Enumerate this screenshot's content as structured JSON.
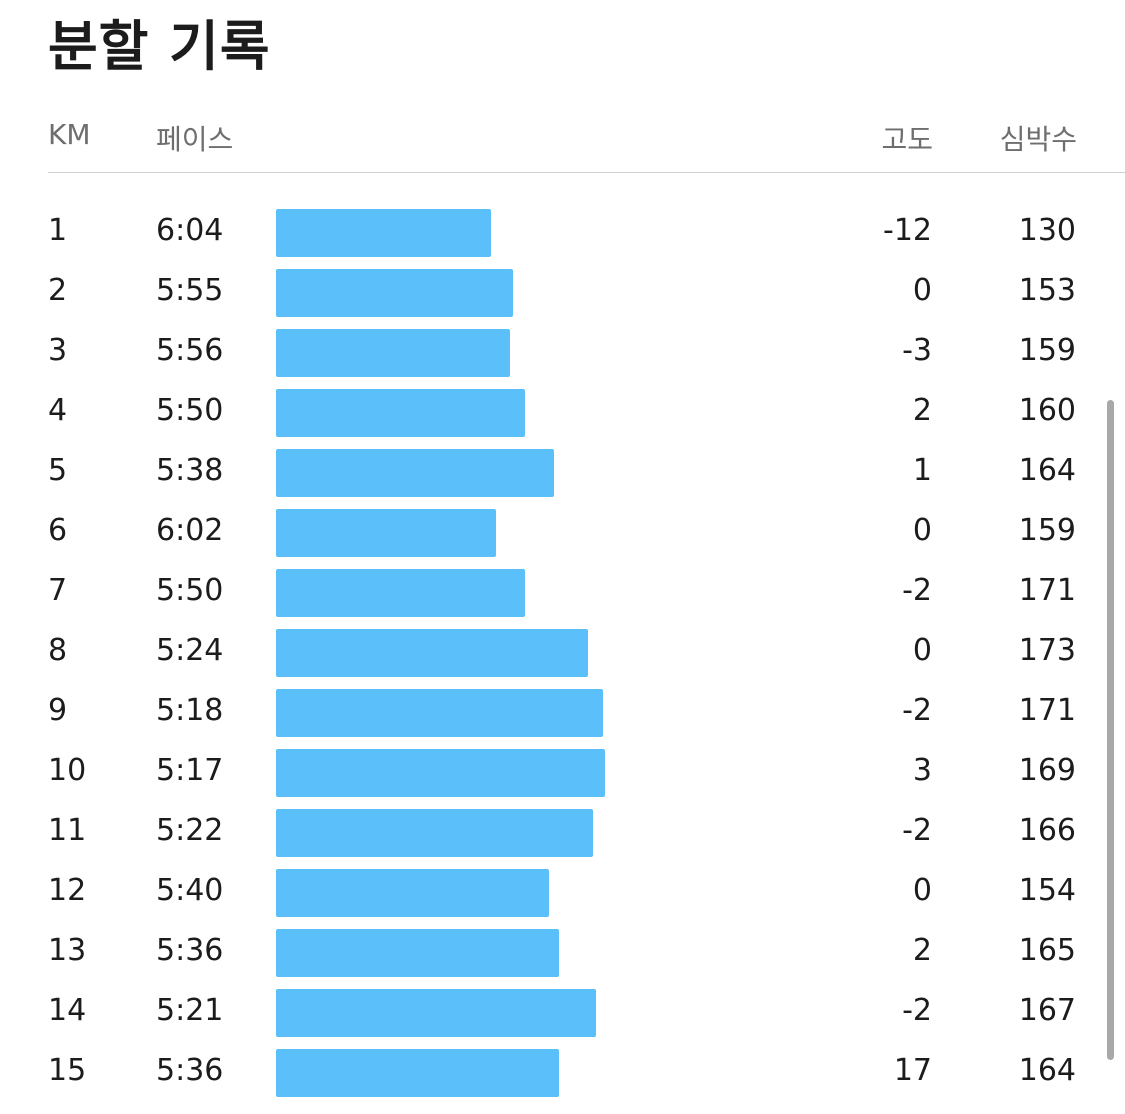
{
  "title": "분할 기록",
  "columns": {
    "km": "KM",
    "pace": "페이스",
    "elevation": "고도",
    "heart_rate": "심박수"
  },
  "accent_color": "#5bc0f9",
  "splits": [
    {
      "km": "1",
      "pace": "6:04",
      "pace_sec": 364,
      "elevation": "-12",
      "heart_rate": "130"
    },
    {
      "km": "2",
      "pace": "5:55",
      "pace_sec": 355,
      "elevation": "0",
      "heart_rate": "153"
    },
    {
      "km": "3",
      "pace": "5:56",
      "pace_sec": 356,
      "elevation": "-3",
      "heart_rate": "159"
    },
    {
      "km": "4",
      "pace": "5:50",
      "pace_sec": 350,
      "elevation": "2",
      "heart_rate": "160"
    },
    {
      "km": "5",
      "pace": "5:38",
      "pace_sec": 338,
      "elevation": "1",
      "heart_rate": "164"
    },
    {
      "km": "6",
      "pace": "6:02",
      "pace_sec": 362,
      "elevation": "0",
      "heart_rate": "159"
    },
    {
      "km": "7",
      "pace": "5:50",
      "pace_sec": 350,
      "elevation": "-2",
      "heart_rate": "171"
    },
    {
      "km": "8",
      "pace": "5:24",
      "pace_sec": 324,
      "elevation": "0",
      "heart_rate": "173"
    },
    {
      "km": "9",
      "pace": "5:18",
      "pace_sec": 318,
      "elevation": "-2",
      "heart_rate": "171"
    },
    {
      "km": "10",
      "pace": "5:17",
      "pace_sec": 317,
      "elevation": "3",
      "heart_rate": "169"
    },
    {
      "km": "11",
      "pace": "5:22",
      "pace_sec": 322,
      "elevation": "-2",
      "heart_rate": "166"
    },
    {
      "km": "12",
      "pace": "5:40",
      "pace_sec": 340,
      "elevation": "0",
      "heart_rate": "154"
    },
    {
      "km": "13",
      "pace": "5:36",
      "pace_sec": 336,
      "elevation": "2",
      "heart_rate": "165"
    },
    {
      "km": "14",
      "pace": "5:21",
      "pace_sec": 321,
      "elevation": "-2",
      "heart_rate": "167"
    },
    {
      "km": "15",
      "pace": "5:36",
      "pace_sec": 336,
      "elevation": "17",
      "heart_rate": "164"
    }
  ]
}
